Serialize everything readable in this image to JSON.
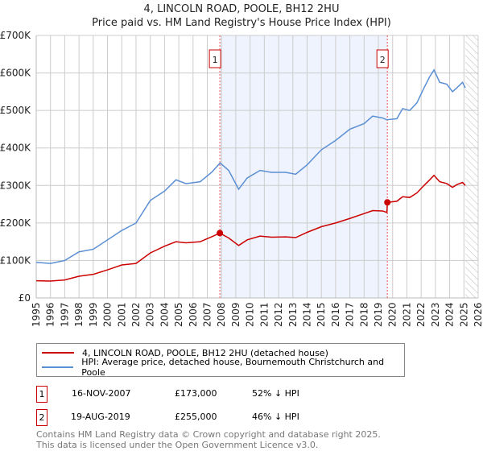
{
  "chart_data": {
    "type": "line",
    "title": "4, LINCOLN ROAD, POOLE, BH12 2HU",
    "subtitle": "Price paid vs. HM Land Registry's House Price Index (HPI)",
    "xlim": [
      1995,
      2026
    ],
    "ylim": [
      0,
      700000
    ],
    "x_ticks": [
      "1995",
      "1996",
      "1997",
      "1998",
      "1999",
      "2000",
      "2001",
      "2002",
      "2003",
      "2004",
      "2005",
      "2006",
      "2007",
      "2008",
      "2009",
      "2010",
      "2011",
      "2012",
      "2013",
      "2014",
      "2015",
      "2016",
      "2017",
      "2018",
      "2019",
      "2020",
      "2021",
      "2022",
      "2023",
      "2024",
      "2025",
      "2026"
    ],
    "y_ticks": [
      {
        "v": 0,
        "label": "£0"
      },
      {
        "v": 100000,
        "label": "£100K"
      },
      {
        "v": 200000,
        "label": "£200K"
      },
      {
        "v": 300000,
        "label": "£300K"
      },
      {
        "v": 400000,
        "label": "£400K"
      },
      {
        "v": 500000,
        "label": "£500K"
      },
      {
        "v": 600000,
        "label": "£600K"
      },
      {
        "v": 700000,
        "label": "£700K"
      }
    ],
    "grid": true,
    "series": [
      {
        "name": "4, LINCOLN ROAD, POOLE, BH12 2HU (detached house)",
        "color": "#cc0000",
        "points": [
          [
            1995,
            46000
          ],
          [
            1996,
            45000
          ],
          [
            1997,
            48000
          ],
          [
            1998,
            58000
          ],
          [
            1999,
            63000
          ],
          [
            2000,
            75000
          ],
          [
            2001,
            88000
          ],
          [
            2002,
            92000
          ],
          [
            2003,
            120000
          ],
          [
            2004,
            138000
          ],
          [
            2004.8,
            150000
          ],
          [
            2005.5,
            147000
          ],
          [
            2006.5,
            150000
          ],
          [
            2007.3,
            163000
          ],
          [
            2007.88,
            173000
          ],
          [
            2008.5,
            160000
          ],
          [
            2009.2,
            140000
          ],
          [
            2009.8,
            155000
          ],
          [
            2010.7,
            165000
          ],
          [
            2011.5,
            162000
          ],
          [
            2012.5,
            163000
          ],
          [
            2013.2,
            161000
          ],
          [
            2014,
            175000
          ],
          [
            2015,
            190000
          ],
          [
            2016,
            200000
          ],
          [
            2017,
            212000
          ],
          [
            2018,
            225000
          ],
          [
            2018.6,
            233000
          ],
          [
            2019.3,
            232000
          ],
          [
            2019.6,
            228000
          ],
          [
            2019.63,
            255000
          ],
          [
            2020.3,
            258000
          ],
          [
            2020.7,
            270000
          ],
          [
            2021.2,
            268000
          ],
          [
            2021.7,
            280000
          ],
          [
            2022.2,
            300000
          ],
          [
            2022.6,
            315000
          ],
          [
            2022.9,
            327000
          ],
          [
            2023.3,
            310000
          ],
          [
            2023.8,
            305000
          ],
          [
            2024.2,
            295000
          ],
          [
            2024.5,
            302000
          ],
          [
            2024.9,
            308000
          ],
          [
            2025.1,
            300000
          ]
        ]
      },
      {
        "name": "HPI: Average price, detached house, Bournemouth Christchurch and Poole",
        "color": "#5b8fd4",
        "points": [
          [
            1995,
            95000
          ],
          [
            1996,
            92000
          ],
          [
            1997,
            100000
          ],
          [
            1998,
            123000
          ],
          [
            1999,
            130000
          ],
          [
            2000,
            155000
          ],
          [
            2001,
            180000
          ],
          [
            2002,
            200000
          ],
          [
            2003,
            260000
          ],
          [
            2004,
            285000
          ],
          [
            2004.8,
            315000
          ],
          [
            2005.5,
            305000
          ],
          [
            2006.5,
            310000
          ],
          [
            2007.3,
            335000
          ],
          [
            2007.9,
            360000
          ],
          [
            2008.5,
            340000
          ],
          [
            2009.2,
            290000
          ],
          [
            2009.8,
            320000
          ],
          [
            2010.7,
            340000
          ],
          [
            2011.5,
            335000
          ],
          [
            2012.5,
            335000
          ],
          [
            2013.2,
            330000
          ],
          [
            2014,
            355000
          ],
          [
            2015,
            395000
          ],
          [
            2016,
            420000
          ],
          [
            2017,
            450000
          ],
          [
            2018,
            465000
          ],
          [
            2018.6,
            485000
          ],
          [
            2019.3,
            480000
          ],
          [
            2019.6,
            475000
          ],
          [
            2020.3,
            478000
          ],
          [
            2020.7,
            505000
          ],
          [
            2021.2,
            500000
          ],
          [
            2021.7,
            520000
          ],
          [
            2022.2,
            560000
          ],
          [
            2022.6,
            590000
          ],
          [
            2022.9,
            608000
          ],
          [
            2023.3,
            575000
          ],
          [
            2023.8,
            570000
          ],
          [
            2024.2,
            550000
          ],
          [
            2024.5,
            560000
          ],
          [
            2024.9,
            575000
          ],
          [
            2025.1,
            560000
          ]
        ]
      }
    ],
    "annotations": [
      {
        "label": "1",
        "x": 2007.88,
        "y": 173000,
        "date": "16-NOV-2007",
        "price": "£173,000",
        "hpi": "52% ↓ HPI"
      },
      {
        "label": "2",
        "x": 2019.63,
        "y": 255000,
        "date": "19-AUG-2019",
        "price": "£255,000",
        "hpi": "46% ↓ HPI"
      }
    ],
    "shaded_range": [
      2007.88,
      2019.63
    ],
    "forecast_from": 2025.1
  },
  "footer": {
    "line1": "Contains HM Land Registry data © Crown copyright and database right 2025.",
    "line2": "This data is licensed under the Open Government Licence v3.0."
  }
}
